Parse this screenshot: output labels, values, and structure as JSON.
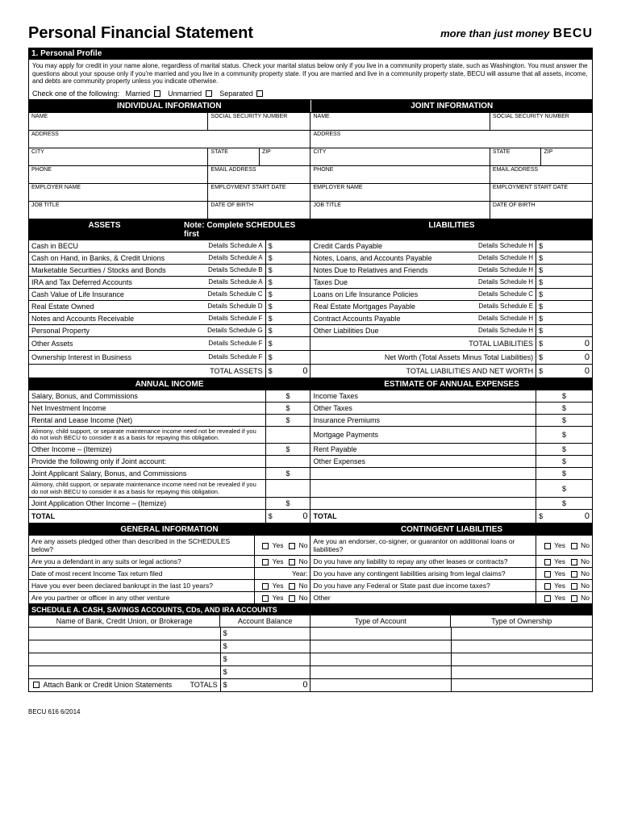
{
  "header": {
    "title": "Personal Financial Statement",
    "tagline": "more than just money",
    "logo": "BECU"
  },
  "section1": {
    "heading": "1. Personal Profile",
    "disclaimer": "You may apply for credit in your name alone, regardless of marital status. Check your marital status below only if you live in a community property state, such as Washington. You must answer the questions about your spouse only if you're married and you live in a community property state. If you are married and live in a community property state, BECU will assume that all assets, income, and debts are community property unless you indicate otherwise.",
    "check_label": "Check one of the following:",
    "married": "Married",
    "unmarried": "Unmarried",
    "separated": "Separated"
  },
  "info_headers": {
    "individual": "INDIVIDUAL INFORMATION",
    "joint": "JOINT INFORMATION"
  },
  "fields": {
    "name": "NAME",
    "ssn": "SOCIAL SECURITY NUMBER",
    "address": "ADDRESS",
    "city": "CITY",
    "state": "STATE",
    "zip": "ZIP",
    "phone": "PHONE",
    "email": "EMAIL ADDRESS",
    "employer": "EMPLOYER NAME",
    "emp_start": "EMPLOYMENT START DATE",
    "job": "JOB TITLE",
    "dob": "DATE OF BIRTH"
  },
  "fin_headers": {
    "assets": "ASSETS",
    "note": "Note: Complete SCHEDULES first",
    "liabilities": "LIABILITIES",
    "annual_income": "ANNUAL INCOME",
    "annual_expenses": "ESTIMATE OF ANNUAL EXPENSES",
    "general_info": "GENERAL INFORMATION",
    "contingent": "CONTINGENT LIABILITIES"
  },
  "assets": [
    {
      "label": "Cash in BECU",
      "detail": "Details Schedule A"
    },
    {
      "label": "Cash on Hand, in Banks, & Credit Unions",
      "detail": "Details Schedule A"
    },
    {
      "label": "Marketable Securities / Stocks and Bonds",
      "detail": "Details Schedule B"
    },
    {
      "label": "IRA and Tax Deferred Accounts",
      "detail": "Details Schedule A"
    },
    {
      "label": "Cash Value of Life Insurance",
      "detail": "Details Schedule C"
    },
    {
      "label": "Real Estate Owned",
      "detail": "Details Schedule D"
    },
    {
      "label": "Notes and Accounts Receivable",
      "detail": "Details Schedule F"
    },
    {
      "label": "Personal Property",
      "detail": "Details Schedule G"
    },
    {
      "label": "Other Assets",
      "detail": "Details Schedule F"
    },
    {
      "label": "Ownership Interest in Business",
      "detail": "Details Schedule F"
    }
  ],
  "liabilities": [
    {
      "label": "Credit Cards Payable",
      "detail": "Details Schedule H"
    },
    {
      "label": "Notes, Loans, and Accounts Payable",
      "detail": "Details Schedule H"
    },
    {
      "label": "Notes Due to Relatives and Friends",
      "detail": "Details Schedule H"
    },
    {
      "label": "Taxes Due",
      "detail": "Details Schedule H"
    },
    {
      "label": "Loans on Life Insurance Policies",
      "detail": "Details Schedule C"
    },
    {
      "label": "Real Estate Mortgages Payable",
      "detail": "Details Schedule E"
    },
    {
      "label": "Contract Accounts Payable",
      "detail": "Details Schedule H"
    },
    {
      "label": "Other Liabilities Due",
      "detail": "Details Schedule H"
    }
  ],
  "totals": {
    "total_assets": "TOTAL ASSETS",
    "total_assets_val": "0",
    "total_liabilities": "TOTAL LIABILITIES",
    "total_liabilities_val": "0",
    "net_worth": "Net Worth (Total Assets Minus Total Liabilities)",
    "net_worth_val": "0",
    "total_liab_nw": "TOTAL LIABILITIES AND NET WORTH",
    "total_liab_nw_val": "0",
    "total": "TOTAL",
    "total_val": "0"
  },
  "income": [
    "Salary, Bonus, and Commissions",
    "Net Investment Income",
    "Rental and Lease Income (Net)"
  ],
  "alimony_note": "Alimony, child support, or separate maintenance income need not be revealed if you do not wish BECU to consider it as a basis for repaying this obligation.",
  "other_income": "Other Income – (Itemize)",
  "joint_only": "Provide the following only if Joint account:",
  "joint_salary": "Joint Applicant Salary, Bonus, and Commissions",
  "joint_other": "Joint Application Other Income – (Itemize)",
  "expenses": [
    "Income Taxes",
    "Other Taxes",
    "Insurance Premiums",
    "Mortgage Payments",
    "Rent Payable",
    "Other Expenses"
  ],
  "gi_left": [
    "Are any assets pledged other than described in the SCHEDULES below?",
    "Are you a defendant in any suits or legal actions?",
    "Date of most recent Income Tax return filed",
    "Have you ever been declared bankrupt in the last 10 years?",
    "Are you partner or officer in any other venture"
  ],
  "gi_right": [
    "Are you an endorser, co-signer, or guarantor on additional loans or liabilities?",
    "Do you have any liability to repay any other leases or contracts?",
    "Do you have any contingent liabilities arising from legal claims?",
    "Do you have any Federal or State past due income taxes?",
    "Other"
  ],
  "year_label": "Year:",
  "yes": "Yes",
  "no": "No",
  "schedA": {
    "title": "SCHEDULE A.  CASH, SAVINGS ACCOUNTS, CDs, AND IRA ACCOUNTS",
    "cols": [
      "Name of Bank, Credit Union, or Brokerage",
      "Account Balance",
      "Type of Account",
      "Type of Ownership"
    ],
    "attach": "Attach Bank or Credit Union Statements",
    "totals": "TOTALS",
    "totals_val": "0"
  },
  "dollar": "$",
  "footer": "BECU 616 6/2014"
}
